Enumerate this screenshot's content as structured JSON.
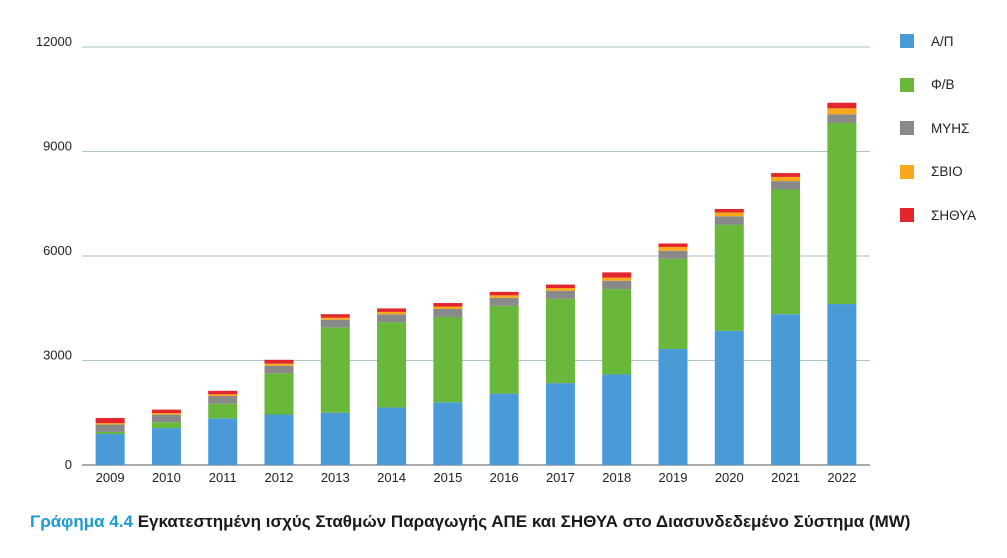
{
  "chart_data": {
    "type": "bar",
    "stacked": true,
    "categories": [
      "2009",
      "2010",
      "2011",
      "2012",
      "2013",
      "2014",
      "2015",
      "2016",
      "2017",
      "2018",
      "2019",
      "2020",
      "2021",
      "2022"
    ],
    "series": [
      {
        "name": "Α/Π",
        "color": "#4a9ad8",
        "values": [
          890,
          1060,
          1340,
          1450,
          1500,
          1650,
          1800,
          2050,
          2350,
          2600,
          3330,
          3850,
          4330,
          4620
        ]
      },
      {
        "name": "Φ/Β",
        "color": "#6ab83b",
        "values": [
          60,
          170,
          420,
          1180,
          2450,
          2450,
          2450,
          2520,
          2420,
          2450,
          2590,
          3050,
          3580,
          5200
        ]
      },
      {
        "name": "ΜΥΗΣ",
        "color": "#898989",
        "values": [
          210,
          215,
          220,
          220,
          220,
          225,
          230,
          230,
          230,
          240,
          230,
          240,
          240,
          250
        ]
      },
      {
        "name": "ΣΒΙΟ",
        "color": "#f7a81b",
        "values": [
          40,
          45,
          50,
          60,
          60,
          70,
          70,
          70,
          80,
          90,
          110,
          110,
          120,
          170
        ]
      },
      {
        "name": "ΣΗΘΥΑ",
        "color": "#e3262d",
        "values": [
          150,
          100,
          100,
          110,
          100,
          100,
          100,
          100,
          100,
          150,
          100,
          100,
          110,
          160
        ]
      }
    ],
    "yticks": [
      "0",
      "3000",
      "6000",
      "9000",
      "12000"
    ],
    "ylim": [
      0,
      12000
    ],
    "grid": true,
    "legend_position": "right",
    "caption_prefix": "Γράφημα 4.4",
    "caption_text": "Εγκατεστημένη ισχύς Σταθμών Παραγωγής ΑΠΕ και ΣΗΘΥΑ στο Διασυνδεδεμένο Σύστημα (MW)"
  }
}
